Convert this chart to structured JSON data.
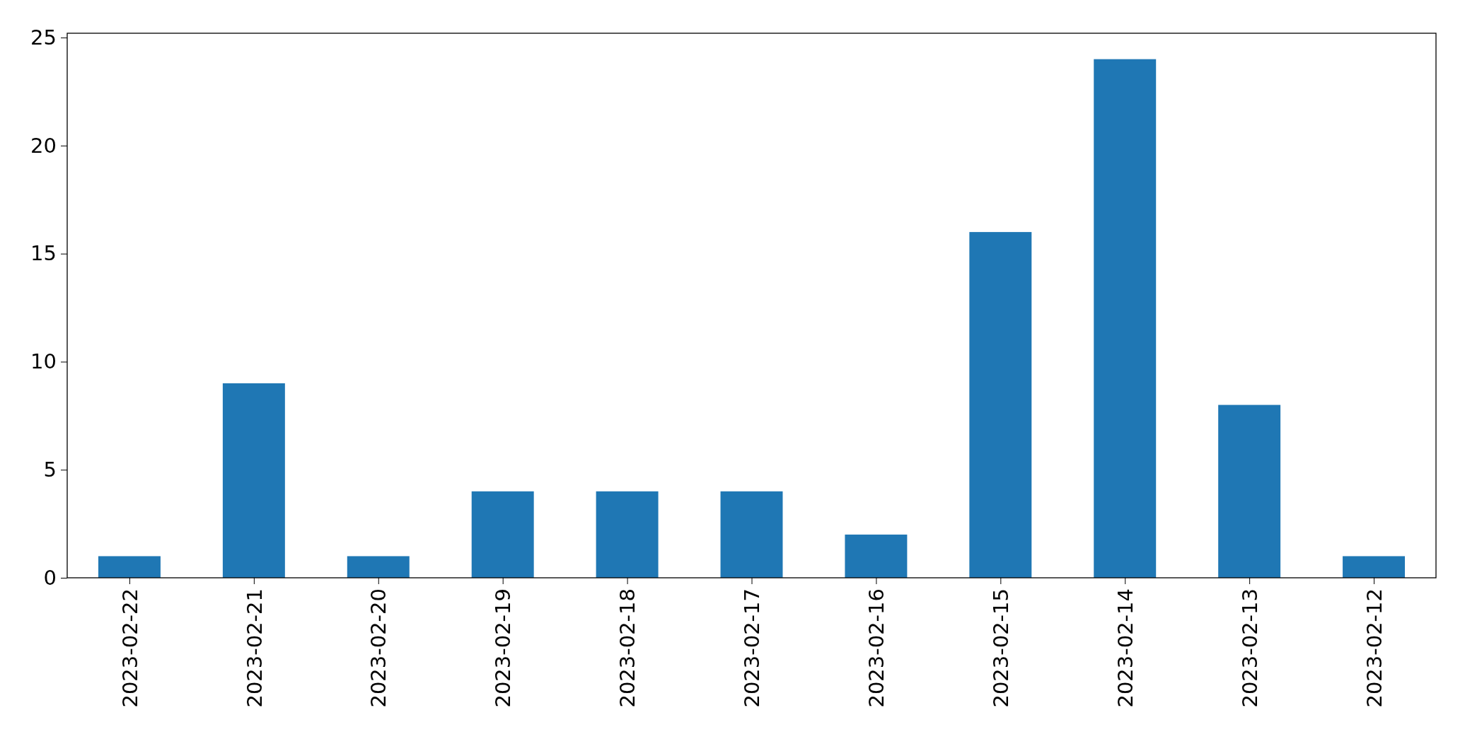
{
  "chart_data": {
    "type": "bar",
    "categories": [
      "2023-02-22",
      "2023-02-21",
      "2023-02-20",
      "2023-02-19",
      "2023-02-18",
      "2023-02-17",
      "2023-02-16",
      "2023-02-15",
      "2023-02-14",
      "2023-02-13",
      "2023-02-12"
    ],
    "values": [
      1,
      9,
      1,
      4,
      4,
      4,
      2,
      16,
      24,
      8,
      1
    ],
    "color": "#1f77b4",
    "ylim": [
      0,
      25.2
    ],
    "yticks": [
      0,
      5,
      10,
      15,
      20,
      25
    ]
  }
}
